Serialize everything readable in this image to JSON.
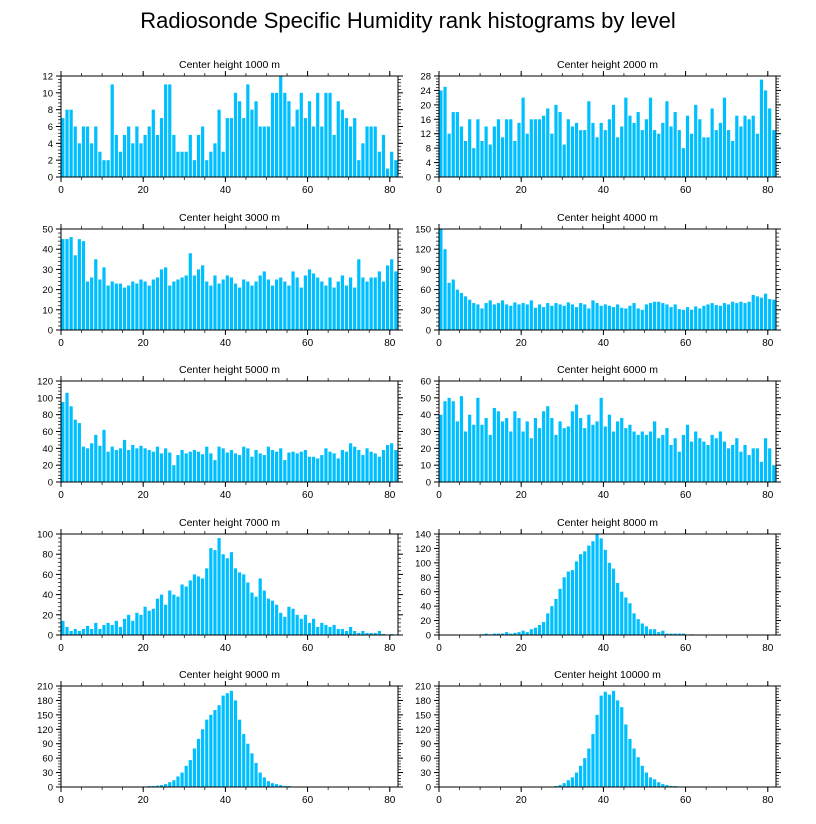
{
  "figure_title": "Radiosonde Specific Humidity rank histograms by level",
  "bar_color": "#00BFFF",
  "chart_data": [
    {
      "type": "bar",
      "title": "Center height 1000 m",
      "ylim": [
        0,
        12
      ],
      "yticks": [
        0,
        2,
        4,
        6,
        8,
        10,
        12
      ],
      "xlim": [
        0,
        82
      ],
      "xticks": [
        0,
        20,
        40,
        60,
        80
      ],
      "values": [
        7,
        8,
        8,
        6,
        4,
        6,
        6,
        4,
        6,
        3,
        2,
        2,
        11,
        5,
        3,
        5,
        6,
        4,
        6,
        4,
        5,
        6,
        8,
        5,
        7,
        11,
        11,
        5,
        3,
        3,
        3,
        5,
        2,
        5,
        6,
        2,
        3,
        4,
        8,
        3,
        7,
        7,
        10,
        9,
        7,
        11,
        8,
        9,
        6,
        6,
        6,
        10,
        10,
        12,
        10,
        9,
        6,
        8,
        10,
        7,
        9,
        6,
        10,
        6,
        10,
        10,
        5,
        9,
        8,
        7,
        6,
        7,
        2,
        4,
        6,
        6,
        6,
        3,
        5,
        1,
        3,
        2
      ]
    },
    {
      "type": "bar",
      "title": "Center height 2000 m",
      "ylim": [
        0,
        28
      ],
      "yticks": [
        0,
        4,
        8,
        12,
        16,
        20,
        24,
        28
      ],
      "xlim": [
        0,
        82
      ],
      "xticks": [
        0,
        20,
        40,
        60,
        80
      ],
      "values": [
        24,
        25,
        12,
        18,
        18,
        14,
        10,
        16,
        8,
        16,
        10,
        14,
        9,
        14,
        16,
        11,
        16,
        16,
        10,
        15,
        22,
        12,
        16,
        16,
        16,
        17,
        19,
        12,
        20,
        18,
        9,
        16,
        14,
        15,
        13,
        13,
        21,
        15,
        11,
        15,
        13,
        16,
        20,
        11,
        14,
        22,
        17,
        15,
        18,
        13,
        16,
        22,
        13,
        12,
        15,
        21,
        14,
        18,
        13,
        8,
        17,
        12,
        20,
        16,
        11,
        11,
        19,
        13,
        15,
        22,
        13,
        10,
        17,
        14,
        17,
        16,
        17,
        12,
        27,
        24,
        19,
        13
      ]
    },
    {
      "type": "bar",
      "title": "Center height 3000 m",
      "ylim": [
        0,
        50
      ],
      "yticks": [
        0,
        10,
        20,
        30,
        40,
        50
      ],
      "xlim": [
        0,
        82
      ],
      "xticks": [
        0,
        20,
        40,
        60,
        80
      ],
      "values": [
        45,
        45,
        46,
        37,
        45,
        44,
        24,
        26,
        35,
        25,
        31,
        22,
        24,
        23,
        23,
        21,
        22,
        24,
        23,
        25,
        24,
        22,
        25,
        26,
        30,
        31,
        22,
        24,
        25,
        26,
        27,
        38,
        27,
        30,
        32,
        24,
        22,
        27,
        23,
        25,
        27,
        26,
        23,
        21,
        25,
        24,
        22,
        24,
        27,
        29,
        25,
        22,
        25,
        26,
        24,
        22,
        29,
        26,
        21,
        27,
        30,
        28,
        26,
        24,
        22,
        26,
        21,
        24,
        27,
        22,
        26,
        21,
        35,
        26,
        24,
        26,
        26,
        29,
        24,
        32,
        35,
        29
      ]
    },
    {
      "type": "bar",
      "title": "Center height 4000 m",
      "ylim": [
        0,
        150
      ],
      "yticks": [
        0,
        30,
        60,
        90,
        120,
        150
      ],
      "xlim": [
        0,
        82
      ],
      "xticks": [
        0,
        20,
        40,
        60,
        80
      ],
      "values": [
        150,
        120,
        70,
        75,
        60,
        55,
        50,
        45,
        40,
        38,
        32,
        40,
        44,
        38,
        40,
        44,
        38,
        36,
        41,
        38,
        40,
        38,
        44,
        33,
        38,
        34,
        40,
        36,
        40,
        38,
        36,
        41,
        38,
        34,
        40,
        38,
        32,
        44,
        40,
        36,
        38,
        36,
        34,
        38,
        33,
        32,
        36,
        40,
        32,
        30,
        38,
        40,
        42,
        42,
        40,
        38,
        34,
        38,
        31,
        30,
        34,
        30,
        35,
        32,
        36,
        38,
        40,
        37,
        36,
        40,
        38,
        42,
        40,
        42,
        40,
        42,
        52,
        50,
        48,
        54,
        46,
        45
      ]
    },
    {
      "type": "bar",
      "title": "Center height 5000 m",
      "ylim": [
        0,
        120
      ],
      "yticks": [
        0,
        20,
        40,
        60,
        80,
        100,
        120
      ],
      "xlim": [
        0,
        82
      ],
      "xticks": [
        0,
        20,
        40,
        60,
        80
      ],
      "values": [
        95,
        106,
        90,
        74,
        70,
        42,
        40,
        46,
        56,
        43,
        62,
        36,
        42,
        38,
        40,
        50,
        38,
        44,
        40,
        43,
        40,
        38,
        36,
        42,
        34,
        40,
        35,
        20,
        32,
        38,
        34,
        36,
        38,
        36,
        33,
        42,
        34,
        26,
        42,
        40,
        35,
        38,
        34,
        32,
        42,
        40,
        30,
        38,
        34,
        32,
        42,
        38,
        36,
        40,
        26,
        35,
        36,
        34,
        36,
        38,
        30,
        30,
        28,
        32,
        40,
        36,
        34,
        28,
        38,
        36,
        46,
        42,
        38,
        32,
        40,
        36,
        34,
        30,
        38,
        44,
        46,
        38
      ]
    },
    {
      "type": "bar",
      "title": "Center height 6000 m",
      "ylim": [
        0,
        60
      ],
      "yticks": [
        0,
        10,
        20,
        30,
        40,
        50,
        60
      ],
      "xlim": [
        0,
        82
      ],
      "xticks": [
        0,
        20,
        40,
        60,
        80
      ],
      "values": [
        40,
        48,
        50,
        48,
        36,
        51,
        30,
        40,
        34,
        50,
        34,
        38,
        28,
        44,
        42,
        36,
        38,
        30,
        42,
        38,
        30,
        36,
        26,
        38,
        32,
        42,
        45,
        38,
        28,
        36,
        32,
        33,
        42,
        46,
        38,
        32,
        40,
        34,
        36,
        50,
        33,
        40,
        30,
        36,
        38,
        32,
        34,
        30,
        28,
        30,
        28,
        30,
        36,
        26,
        28,
        32,
        22,
        26,
        18,
        28,
        34,
        24,
        30,
        26,
        24,
        22,
        28,
        26,
        30,
        24,
        20,
        22,
        26,
        18,
        22,
        16,
        20,
        20,
        12,
        26,
        20,
        10
      ]
    },
    {
      "type": "bar",
      "title": "Center height 7000 m",
      "ylim": [
        0,
        100
      ],
      "yticks": [
        0,
        20,
        40,
        60,
        80,
        100
      ],
      "xlim": [
        0,
        82
      ],
      "xticks": [
        0,
        20,
        40,
        60,
        80
      ],
      "values": [
        14,
        8,
        4,
        6,
        4,
        6,
        9,
        6,
        12,
        6,
        10,
        12,
        10,
        14,
        8,
        16,
        20,
        14,
        22,
        20,
        28,
        24,
        26,
        36,
        40,
        30,
        44,
        40,
        38,
        50,
        48,
        54,
        60,
        58,
        56,
        66,
        86,
        84,
        96,
        80,
        76,
        82,
        66,
        62,
        60,
        52,
        42,
        38,
        56,
        44,
        36,
        34,
        30,
        22,
        18,
        28,
        26,
        20,
        16,
        20,
        12,
        16,
        8,
        12,
        10,
        8,
        10,
        6,
        6,
        4,
        8,
        4,
        2,
        4,
        2,
        2,
        2,
        4,
        1,
        0,
        1,
        0
      ]
    },
    {
      "type": "bar",
      "title": "Center height 8000 m",
      "ylim": [
        0,
        140
      ],
      "yticks": [
        0,
        20,
        40,
        60,
        80,
        100,
        120,
        140
      ],
      "xlim": [
        0,
        82
      ],
      "xticks": [
        0,
        20,
        40,
        60,
        80
      ],
      "values": [
        0,
        0,
        0,
        0,
        0,
        0,
        0,
        0,
        0,
        0,
        1,
        2,
        1,
        2,
        2,
        2,
        4,
        2,
        3,
        4,
        6,
        4,
        8,
        10,
        14,
        18,
        30,
        40,
        50,
        64,
        80,
        88,
        90,
        102,
        112,
        116,
        124,
        130,
        140,
        134,
        118,
        100,
        92,
        72,
        60,
        52,
        44,
        30,
        22,
        16,
        12,
        8,
        8,
        4,
        6,
        2,
        2,
        2,
        2,
        2,
        0,
        1,
        0,
        0,
        0,
        0,
        0,
        0,
        0,
        0,
        0,
        0,
        0,
        0,
        0,
        0,
        0,
        0,
        0,
        0,
        0,
        0
      ]
    },
    {
      "type": "bar",
      "title": "Center height 9000 m",
      "ylim": [
        0,
        210
      ],
      "yticks": [
        0,
        30,
        60,
        90,
        120,
        150,
        180,
        210
      ],
      "xlim": [
        0,
        82
      ],
      "xticks": [
        0,
        20,
        40,
        60,
        80
      ],
      "values": [
        0,
        0,
        0,
        0,
        0,
        0,
        0,
        0,
        0,
        0,
        0,
        0,
        0,
        0,
        0,
        0,
        0,
        0,
        0,
        0,
        1,
        2,
        2,
        3,
        4,
        6,
        10,
        14,
        22,
        30,
        44,
        56,
        80,
        100,
        120,
        140,
        150,
        160,
        170,
        190,
        195,
        200,
        180,
        140,
        110,
        90,
        70,
        50,
        30,
        20,
        12,
        8,
        6,
        4,
        2,
        2,
        1,
        1,
        0,
        0,
        0,
        0,
        0,
        0,
        0,
        0,
        0,
        0,
        0,
        0,
        0,
        0,
        0,
        0,
        0,
        0,
        0,
        0,
        0,
        0,
        0,
        0
      ]
    },
    {
      "type": "bar",
      "title": "Center height 10000 m",
      "ylim": [
        0,
        210
      ],
      "yticks": [
        0,
        30,
        60,
        90,
        120,
        150,
        180,
        210
      ],
      "xlim": [
        0,
        82
      ],
      "xticks": [
        0,
        20,
        40,
        60,
        80
      ],
      "values": [
        0,
        0,
        0,
        0,
        0,
        0,
        0,
        0,
        0,
        0,
        0,
        0,
        0,
        0,
        0,
        0,
        0,
        0,
        0,
        0,
        0,
        0,
        0,
        0,
        0,
        0,
        1,
        1,
        2,
        4,
        8,
        14,
        20,
        30,
        44,
        60,
        80,
        110,
        150,
        190,
        198,
        192,
        200,
        180,
        166,
        130,
        100,
        80,
        62,
        44,
        30,
        20,
        16,
        10,
        6,
        4,
        2,
        2,
        1,
        1,
        0,
        0,
        0,
        0,
        0,
        0,
        0,
        0,
        0,
        0,
        0,
        0,
        0,
        0,
        0,
        0,
        0,
        0,
        0,
        0,
        0,
        0
      ]
    }
  ]
}
